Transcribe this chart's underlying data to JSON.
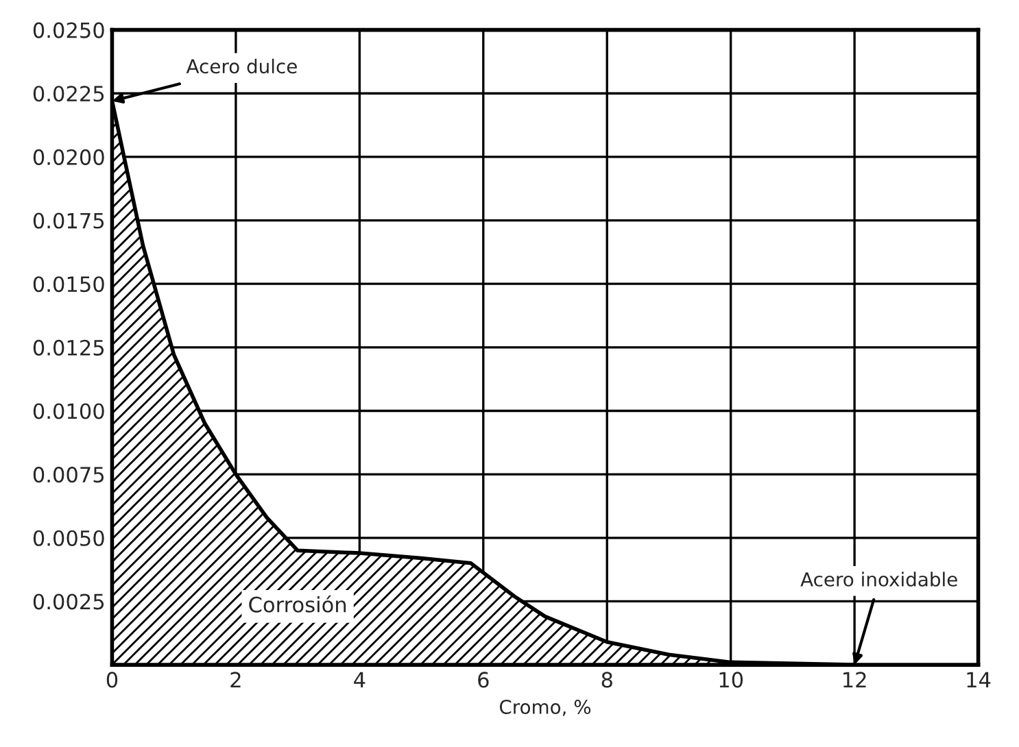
{
  "chart_data": {
    "type": "area",
    "xlabel": "Cromo, %",
    "x": [
      0,
      0.5,
      1,
      1.5,
      2,
      2.5,
      3,
      4,
      5,
      5.8,
      6.5,
      7,
      8,
      9,
      10,
      12
    ],
    "series": [
      {
        "color": "#000000",
        "values": [
          0.0222,
          0.0165,
          0.0122,
          0.0095,
          0.0075,
          0.0058,
          0.0045,
          0.0044,
          0.0042,
          0.004,
          0.0027,
          0.0019,
          0.0009,
          0.0004,
          0.0001,
          0
        ]
      }
    ],
    "xlim": [
      0,
      14
    ],
    "xticks": [
      0,
      2,
      4,
      6,
      8,
      10,
      12,
      14
    ],
    "ylim": [
      0,
      0.025
    ],
    "yticks": [
      {
        "value": 0,
        "label": null
      },
      {
        "value": 0.0025,
        "label": "0.0025"
      },
      {
        "value": 0.005,
        "label": "0.0050"
      },
      {
        "value": 0.0075,
        "label": "0.0075"
      },
      {
        "value": 0.01,
        "label": "0.0100"
      },
      {
        "value": 0.0125,
        "label": "0.0125"
      },
      {
        "value": 0.015,
        "label": "0.0150"
      },
      {
        "value": 0.0175,
        "label": "0.0175"
      },
      {
        "value": 0.02,
        "label": "0.0200"
      },
      {
        "value": 0.0225,
        "label": "0.0225"
      },
      {
        "value": 0.025,
        "label": "0.0250"
      }
    ],
    "grid": true,
    "annotations": [
      {
        "text": "Acero dulce",
        "x": 0,
        "y": 0.0222
      },
      {
        "text": "Acero inoxidable",
        "x": 12,
        "y": 0
      },
      "Corrosión"
    ]
  }
}
